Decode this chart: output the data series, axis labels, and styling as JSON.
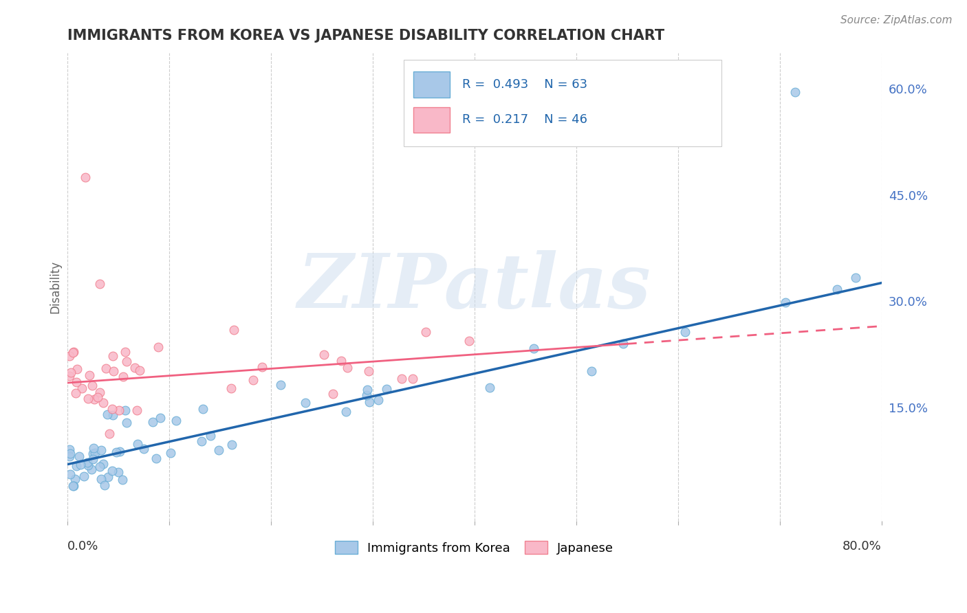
{
  "title": "IMMIGRANTS FROM KOREA VS JAPANESE DISABILITY CORRELATION CHART",
  "source": "Source: ZipAtlas.com",
  "ylabel": "Disability",
  "watermark": "ZIPatlas",
  "legend_blue_label": "Immigrants from Korea",
  "legend_pink_label": "Japanese",
  "legend_blue_R": "0.493",
  "legend_blue_N": "63",
  "legend_pink_R": "0.217",
  "legend_pink_N": "46",
  "blue_dot_face": "#a8c8e8",
  "blue_dot_edge": "#6aaed6",
  "pink_dot_face": "#f9b8c8",
  "pink_dot_edge": "#f08090",
  "blue_line_color": "#2166ac",
  "pink_line_color": "#f06080",
  "y_ticks": [
    0.15,
    0.3,
    0.45,
    0.6
  ],
  "y_tick_labels": [
    "15.0%",
    "30.0%",
    "45.0%",
    "60.0%"
  ],
  "x_lim": [
    0.0,
    0.8
  ],
  "y_lim": [
    -0.01,
    0.65
  ],
  "blue_slope": 0.32,
  "blue_intercept": 0.07,
  "pink_slope": 0.1,
  "pink_intercept": 0.185,
  "grid_color": "#cccccc",
  "title_color": "#333333",
  "source_color": "#888888",
  "watermark_color": "#d0dff0",
  "right_tick_color": "#4472c4"
}
